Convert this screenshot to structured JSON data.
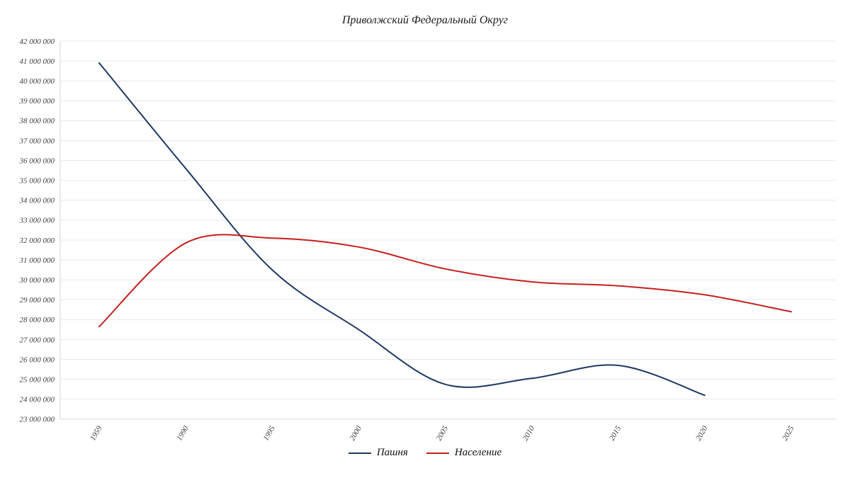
{
  "title": "Приволжский Федеральный Округ",
  "chart_data": {
    "type": "line",
    "title": "Приволжский Федеральный Округ",
    "categories": [
      "1959",
      "1990",
      "1995",
      "2000",
      "2005",
      "2010",
      "2015",
      "2020",
      "2025"
    ],
    "series": [
      {
        "name": "Пашня",
        "color": "#1f3864",
        "values": [
          40900000,
          35600000,
          30500000,
          27500000,
          24750000,
          25050000,
          25700000,
          24200000,
          null
        ]
      },
      {
        "name": "Население",
        "color": "#c42020",
        "values": [
          27650000,
          31850000,
          32100000,
          31650000,
          30550000,
          29900000,
          29700000,
          29250000,
          28400000
        ]
      }
    ],
    "xlabel": "",
    "ylabel": "",
    "ylim": [
      23000000,
      42000000
    ],
    "ytick_step": 1000000,
    "grid": true,
    "legend_position": "bottom",
    "line_style": "smooth",
    "yticks": [
      "42 000 000",
      "41 000 000",
      "40 000 000",
      "39 000 000",
      "38 000 000",
      "37 000 000",
      "36 000 000",
      "35 000 000",
      "34 000 000",
      "33 000 000",
      "32 000 000",
      "31 000 000",
      "30 000 000",
      "29 000 000",
      "28 000 000",
      "27 000 000",
      "26 000 000",
      "25 000 000",
      "24 000 000",
      "23 000 000"
    ],
    "colors": {
      "gridline": "#e8e8e8",
      "axis_line": "#d6d6d6",
      "tick_text": "#3d3d3d",
      "title_text": "#1a1a1a"
    }
  }
}
